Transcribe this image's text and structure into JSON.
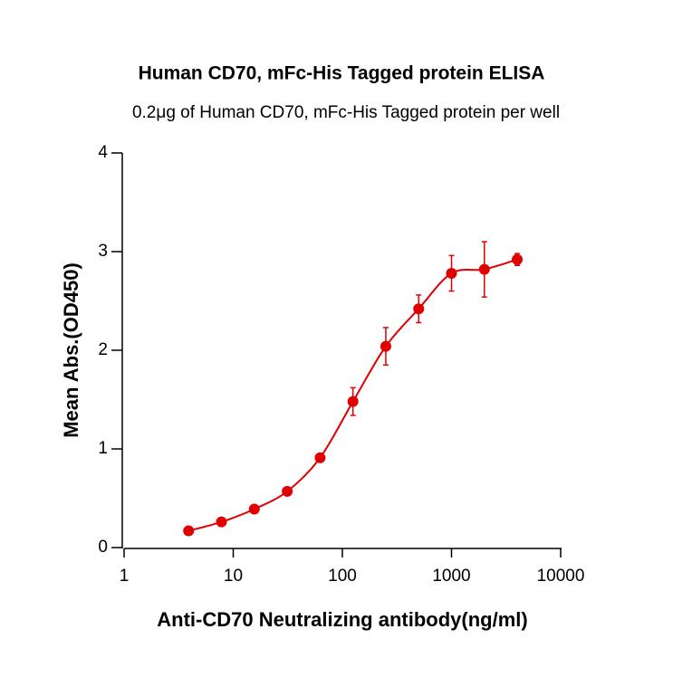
{
  "chart_data": {
    "type": "scatter",
    "title": "Human CD70,  mFc-His Tagged protein ELISA",
    "subtitle": "0.2μg of Human CD70, mFc-His Tagged protein per well",
    "x_label": "Anti-CD70 Neutralizing antibody(ng/ml)",
    "y_label": "Mean Abs.(OD450)",
    "x": [
      3.9,
      7.8,
      15.6,
      31.25,
      62.5,
      125,
      250,
      500,
      1000,
      2000,
      4000
    ],
    "values": [
      0.17,
      0.26,
      0.39,
      0.57,
      0.91,
      1.48,
      2.04,
      2.42,
      2.78,
      2.82,
      2.92
    ],
    "errors": [
      0.02,
      0.02,
      0.02,
      0.02,
      0.03,
      0.14,
      0.19,
      0.14,
      0.18,
      0.28,
      0.06
    ],
    "color": "#e00000",
    "xscale": "log",
    "xlim": [
      1,
      10000
    ],
    "xticks": [
      1,
      10,
      100,
      1000,
      10000
    ],
    "ylim": [
      0,
      4
    ],
    "yticks": [
      0,
      1,
      2,
      3,
      4
    ]
  }
}
